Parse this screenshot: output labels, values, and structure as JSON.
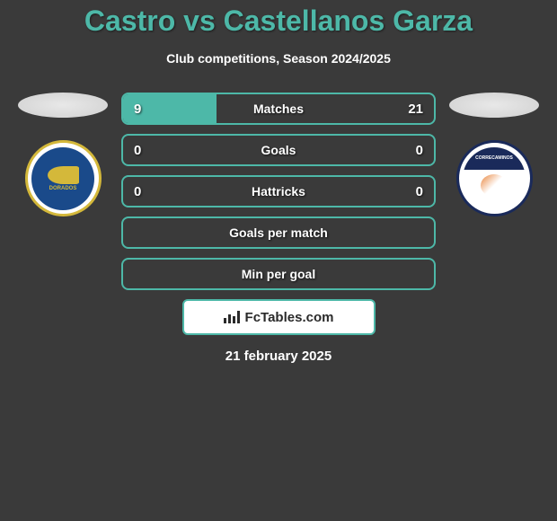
{
  "title": "Castro vs Castellanos Garza",
  "subtitle": "Club competitions, Season 2024/2025",
  "date": "21 february 2025",
  "badge": {
    "text": "FcTables.com"
  },
  "colors": {
    "accent": "#4db8a8",
    "background": "#3a3a3a",
    "text": "#ffffff",
    "badge_bg": "#ffffff",
    "badge_text": "#2a2a2a"
  },
  "team_left": {
    "name": "DORADOS",
    "logo_bg": "#1a4a8a",
    "logo_accent": "#d4b83a"
  },
  "team_right": {
    "name": "CORRECAMINOS",
    "logo_bg": "#1a2a5a",
    "logo_accent": "#e8833a"
  },
  "stats": [
    {
      "label": "Matches",
      "left_value": "9",
      "right_value": "21",
      "fill_percent": 30
    },
    {
      "label": "Goals",
      "left_value": "0",
      "right_value": "0",
      "fill_percent": 0
    },
    {
      "label": "Hattricks",
      "left_value": "0",
      "right_value": "0",
      "fill_percent": 0
    },
    {
      "label": "Goals per match",
      "left_value": "",
      "right_value": "",
      "fill_percent": 0
    },
    {
      "label": "Min per goal",
      "left_value": "",
      "right_value": "",
      "fill_percent": 0
    }
  ]
}
